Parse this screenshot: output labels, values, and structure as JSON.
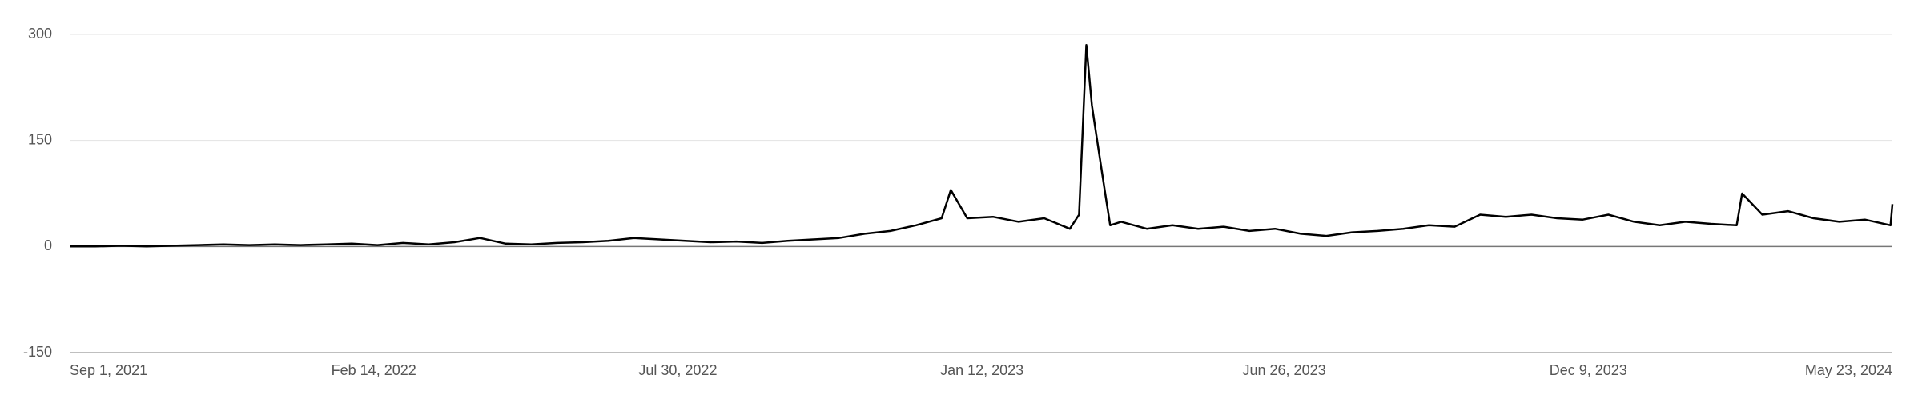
{
  "chart_data": {
    "type": "line",
    "x": [
      "2021-09-01",
      "2021-09-15",
      "2021-09-29",
      "2021-10-13",
      "2021-10-27",
      "2021-11-10",
      "2021-11-24",
      "2021-12-08",
      "2021-12-22",
      "2022-01-05",
      "2022-01-19",
      "2022-02-02",
      "2022-02-16",
      "2022-03-02",
      "2022-03-16",
      "2022-03-30",
      "2022-04-13",
      "2022-04-27",
      "2022-05-11",
      "2022-05-25",
      "2022-06-08",
      "2022-06-22",
      "2022-07-06",
      "2022-07-20",
      "2022-08-03",
      "2022-08-17",
      "2022-08-31",
      "2022-09-14",
      "2022-09-28",
      "2022-10-12",
      "2022-10-26",
      "2022-11-09",
      "2022-11-23",
      "2022-12-07",
      "2022-12-21",
      "2022-12-26",
      "2023-01-04",
      "2023-01-18",
      "2023-02-01",
      "2023-02-15",
      "2023-03-01",
      "2023-03-06",
      "2023-03-10",
      "2023-03-13",
      "2023-03-15",
      "2023-03-20",
      "2023-03-23",
      "2023-03-29",
      "2023-04-12",
      "2023-04-26",
      "2023-05-10",
      "2023-05-24",
      "2023-06-07",
      "2023-06-21",
      "2023-07-05",
      "2023-07-19",
      "2023-08-02",
      "2023-08-16",
      "2023-08-30",
      "2023-09-13",
      "2023-09-27",
      "2023-10-11",
      "2023-10-25",
      "2023-11-08",
      "2023-11-22",
      "2023-12-06",
      "2023-12-20",
      "2024-01-03",
      "2024-01-17",
      "2024-01-31",
      "2024-02-14",
      "2024-02-28",
      "2024-03-02",
      "2024-03-13",
      "2024-03-27",
      "2024-04-10",
      "2024-04-24",
      "2024-05-08",
      "2024-05-22",
      "2024-05-23"
    ],
    "series": [
      {
        "color": "#000000",
        "values": [
          0,
          0,
          1,
          0,
          1,
          2,
          3,
          2,
          3,
          2,
          3,
          4,
          2,
          5,
          3,
          6,
          12,
          4,
          3,
          5,
          6,
          8,
          12,
          10,
          8,
          6,
          7,
          5,
          8,
          10,
          12,
          18,
          22,
          30,
          40,
          80,
          40,
          42,
          35,
          40,
          25,
          45,
          285,
          200,
          165,
          80,
          30,
          35,
          25,
          30,
          25,
          28,
          22,
          25,
          18,
          15,
          20,
          22,
          25,
          30,
          28,
          45,
          42,
          45,
          40,
          38,
          45,
          35,
          30,
          35,
          32,
          30,
          75,
          45,
          50,
          40,
          35,
          38,
          30,
          60
        ]
      }
    ],
    "ylim": [
      -150,
      300
    ],
    "yticks": [
      -150,
      0,
      150,
      300
    ],
    "xlim": [
      "2021-09-01",
      "2024-05-23"
    ],
    "xticks": [
      {
        "value": "2021-09-01",
        "label": "Sep 1, 2021"
      },
      {
        "value": "2022-02-14",
        "label": "Feb 14, 2022"
      },
      {
        "value": "2022-07-30",
        "label": "Jul 30, 2022"
      },
      {
        "value": "2023-01-12",
        "label": "Jan 12, 2023"
      },
      {
        "value": "2023-06-26",
        "label": "Jun 26, 2023"
      },
      {
        "value": "2023-12-09",
        "label": "Dec 9, 2023"
      },
      {
        "value": "2024-05-23",
        "label": "May 23, 2024"
      }
    ],
    "grid": true
  }
}
